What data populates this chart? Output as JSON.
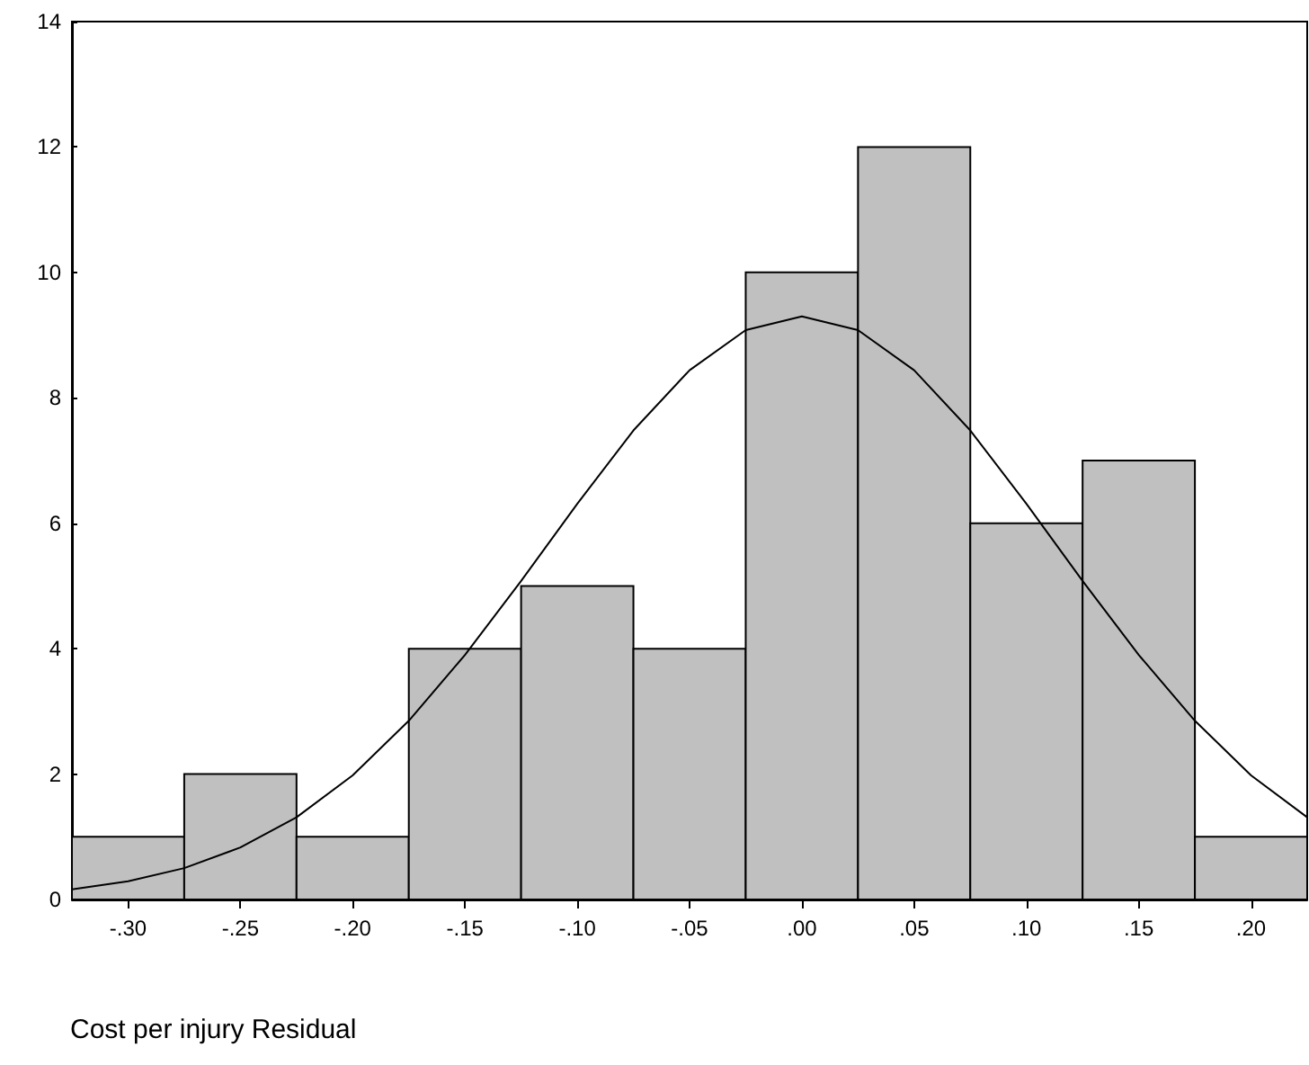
{
  "chart_data": {
    "type": "histogram",
    "xlabel": "Cost per injury Residual",
    "bins": [
      -0.325,
      -0.275,
      -0.225,
      -0.175,
      -0.125,
      -0.075,
      -0.025,
      0.025,
      0.075,
      0.125,
      0.175,
      0.225
    ],
    "values": [
      1,
      2,
      1,
      4,
      5,
      4,
      10,
      12,
      6,
      7,
      1
    ],
    "color": "#c0c0c0",
    "series": [
      {
        "type": "line",
        "color": "#000000",
        "x": [
          -0.325,
          -0.3,
          -0.275,
          -0.25,
          -0.225,
          -0.2,
          -0.175,
          -0.15,
          -0.125,
          -0.1,
          -0.075,
          -0.05,
          -0.025,
          0,
          0.025,
          0.05,
          0.075,
          0.1,
          0.125,
          0.15,
          0.175,
          0.2,
          0.225
        ],
        "values": [
          0.16,
          0.29,
          0.5,
          0.83,
          1.31,
          1.98,
          2.85,
          3.9,
          5.08,
          6.31,
          7.48,
          8.44,
          9.08,
          9.3,
          9.08,
          8.44,
          7.48,
          6.31,
          5.08,
          3.9,
          2.85,
          1.98,
          1.31
        ]
      }
    ],
    "xlim": [
      -0.325,
      0.225
    ],
    "xticks": [
      {
        "value": -0.3,
        "label": "-.30"
      },
      {
        "value": -0.25,
        "label": "-.25"
      },
      {
        "value": -0.2,
        "label": "-.20"
      },
      {
        "value": -0.15,
        "label": "-.15"
      },
      {
        "value": -0.1,
        "label": "-.10"
      },
      {
        "value": -0.05,
        "label": "-.05"
      },
      {
        "value": 0,
        "label": ".00"
      },
      {
        "value": 0.05,
        "label": ".05"
      },
      {
        "value": 0.1,
        "label": ".10"
      },
      {
        "value": 0.15,
        "label": ".15"
      },
      {
        "value": 0.2,
        "label": ".20"
      }
    ],
    "ylim": [
      0,
      14
    ],
    "yticks": [
      0,
      2,
      4,
      6,
      8,
      10,
      12,
      14
    ],
    "grid": false,
    "marker": "none",
    "line_style": "solid"
  }
}
